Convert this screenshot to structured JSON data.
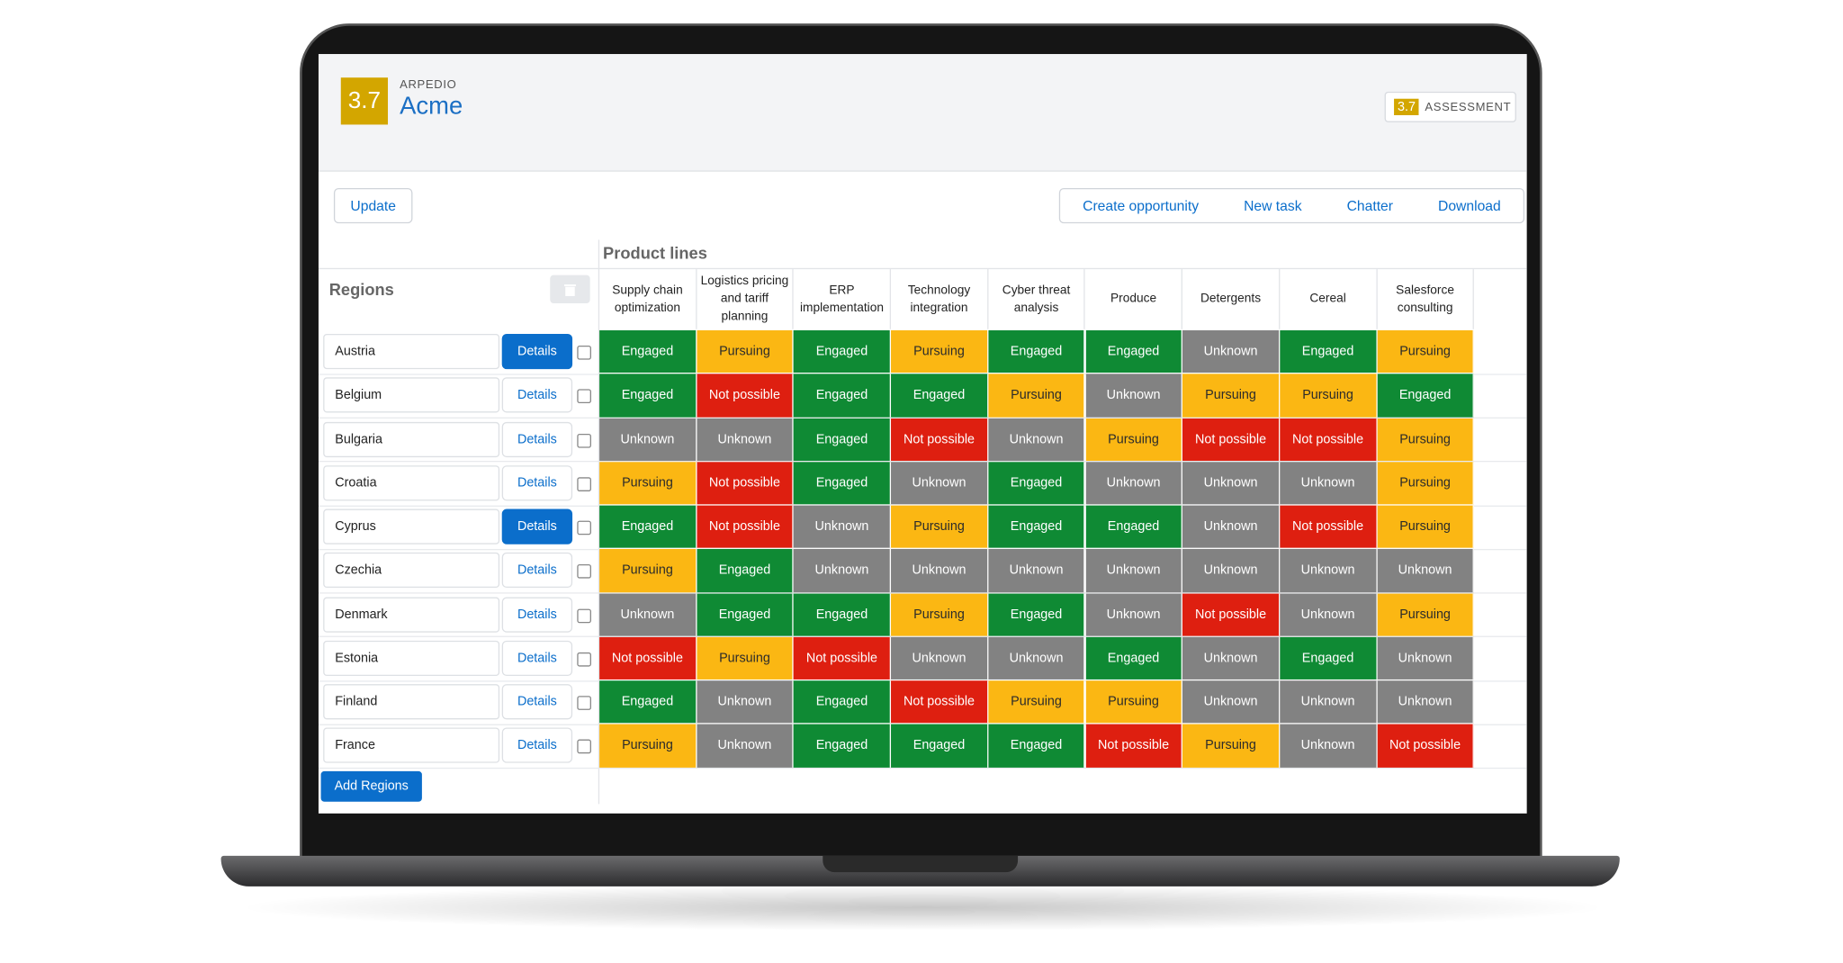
{
  "header": {
    "badge": "3.7",
    "company": "ARPEDIO",
    "account": "Acme",
    "assessment_badge": "3.7",
    "assessment": "ASSESSMENT"
  },
  "toolbar": {
    "update": "Update",
    "actions": [
      "Create opportunity",
      "New task",
      "Chatter",
      "Download"
    ]
  },
  "grid": {
    "title": "Product lines",
    "regions_label": "Regions",
    "columns": [
      "Supply chain optimization",
      "Logistics pricing and tariff planning",
      "ERP implementation",
      "Technology integration",
      "Cyber threat analysis",
      "Produce",
      "Detergents",
      "Cereal",
      "Salesforce consulting"
    ],
    "status_styles": {
      "Engaged": {
        "color": "#0f8a34",
        "text_color": "#ffffff"
      },
      "Pursuing": {
        "color": "#fbb713",
        "text_color": "#2b2b2b"
      },
      "Not possible": {
        "color": "#de1f10",
        "text_color": "#ffffff"
      },
      "Unknown": {
        "color": "#828282",
        "text_color": "#ffffff"
      }
    },
    "rows": [
      {
        "region": "Austria",
        "details": "Details",
        "selected": true,
        "cells": [
          "Engaged",
          "Pursuing",
          "Engaged",
          "Pursuing",
          "Engaged",
          "Engaged",
          "Unknown",
          "Engaged",
          "Pursuing"
        ]
      },
      {
        "region": "Belgium",
        "details": "Details",
        "selected": false,
        "cells": [
          "Engaged",
          "Not possible",
          "Engaged",
          "Engaged",
          "Pursuing",
          "Unknown",
          "Pursuing",
          "Pursuing",
          "Engaged"
        ]
      },
      {
        "region": "Bulgaria",
        "details": "Details",
        "selected": false,
        "cells": [
          "Unknown",
          "Unknown",
          "Engaged",
          "Not possible",
          "Unknown",
          "Pursuing",
          "Not possible",
          "Not possible",
          "Pursuing"
        ]
      },
      {
        "region": "Croatia",
        "details": "Details",
        "selected": false,
        "cells": [
          "Pursuing",
          "Not possible",
          "Engaged",
          "Unknown",
          "Engaged",
          "Unknown",
          "Unknown",
          "Unknown",
          "Pursuing"
        ]
      },
      {
        "region": "Cyprus",
        "details": "Details",
        "selected": true,
        "cells": [
          "Engaged",
          "Not possible",
          "Unknown",
          "Pursuing",
          "Engaged",
          "Engaged",
          "Unknown",
          "Not possible",
          "Pursuing"
        ]
      },
      {
        "region": "Czechia",
        "details": "Details",
        "selected": false,
        "cells": [
          "Pursuing",
          "Engaged",
          "Unknown",
          "Unknown",
          "Unknown",
          "Unknown",
          "Unknown",
          "Unknown",
          "Unknown"
        ]
      },
      {
        "region": "Denmark",
        "details": "Details",
        "selected": false,
        "cells": [
          "Unknown",
          "Engaged",
          "Engaged",
          "Pursuing",
          "Engaged",
          "Unknown",
          "Not possible",
          "Unknown",
          "Pursuing"
        ]
      },
      {
        "region": "Estonia",
        "details": "Details",
        "selected": false,
        "cells": [
          "Not possible",
          "Pursuing",
          "Not possible",
          "Unknown",
          "Unknown",
          "Engaged",
          "Unknown",
          "Engaged",
          "Unknown"
        ]
      },
      {
        "region": "Finland",
        "details": "Details",
        "selected": false,
        "cells": [
          "Engaged",
          "Unknown",
          "Engaged",
          "Not possible",
          "Pursuing",
          "Pursuing",
          "Unknown",
          "Unknown",
          "Unknown"
        ]
      },
      {
        "region": "France",
        "details": "Details",
        "selected": false,
        "cells": [
          "Pursuing",
          "Unknown",
          "Engaged",
          "Engaged",
          "Engaged",
          "Not possible",
          "Pursuing",
          "Unknown",
          "Not possible"
        ]
      }
    ],
    "add_button": "Add Regions"
  }
}
